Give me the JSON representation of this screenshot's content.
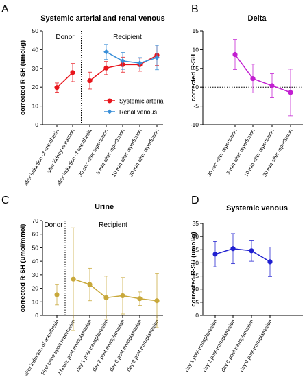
{
  "panels": [
    {
      "letter": "A",
      "chart_data": {
        "type": "line",
        "title": "Systemic arterial and renal venous",
        "ylabel": "corrected R-SH (umol/g)",
        "ylim": [
          0,
          50
        ],
        "yticks": [
          0,
          10,
          20,
          30,
          40,
          50
        ],
        "categories": [
          "after induction of anesthesia",
          "after kidney extraction",
          "after induction of anesthesia",
          "30 sec after reperfusion",
          "5 min after reperfusion",
          "10 min after reperfusion",
          "30 min after reperfusion"
        ],
        "group_labels": [
          {
            "text": "Donor",
            "from": 0,
            "to": 1
          },
          {
            "text": "Recipient",
            "from": 2,
            "to": 6
          }
        ],
        "separator_after_index": 1,
        "series": [
          {
            "name": "Systemic arterial",
            "color": "#e8141b",
            "marker": "circle",
            "values": [
              19.8,
              27.8,
              23.5,
              30.2,
              32.0,
              32.0,
              37.0
            ],
            "errors": [
              2.5,
              4.8,
              4.5,
              3.5,
              4.0,
              3.5,
              5.5
            ],
            "segments": [
              [
                0,
                1
              ],
              [
                2,
                6
              ]
            ]
          },
          {
            "name": "Renal venous",
            "color": "#3a8fd8",
            "marker": "diamond",
            "values": [
              null,
              null,
              null,
              38.8,
              34.0,
              32.8,
              35.8
            ],
            "errors": [
              null,
              null,
              null,
              4.0,
              4.5,
              3.0,
              6.5
            ],
            "segments": [
              [
                3,
                6
              ]
            ]
          }
        ],
        "legend_position": "lower-right"
      }
    },
    {
      "letter": "B",
      "chart_data": {
        "type": "line",
        "title": "Delta",
        "ylabel": "corrected R-SH",
        "ylim": [
          -10,
          15
        ],
        "yticks": [
          -10,
          -5,
          0,
          5,
          10,
          15
        ],
        "categories": [
          "30 sec after reperfusion",
          "5 min after reperfusion",
          "10 min after reperfusion",
          "30 min after reperfusion"
        ],
        "zero_line": true,
        "series": [
          {
            "name": "",
            "color": "#c21fd1",
            "marker": "circle",
            "values": [
              8.7,
              2.3,
              0.4,
              -1.4
            ],
            "errors": [
              4.0,
              3.8,
              3.2,
              6.2
            ],
            "segments": [
              [
                0,
                3
              ]
            ]
          }
        ]
      }
    },
    {
      "letter": "C",
      "chart_data": {
        "type": "line",
        "title": "Urine",
        "ylabel": "corrected R-SH (umol/mmol)",
        "ylim": [
          0,
          70
        ],
        "yticks": [
          0,
          10,
          20,
          30,
          40,
          50,
          60,
          70
        ],
        "categories": [
          "after induction of anesthesia",
          "First urine upon reperfusion",
          "2 hours post transplantation",
          "day 1 post transplantation",
          "day 2 post transplantation",
          "day 6 post transplantation",
          "day 9 post transplantation"
        ],
        "group_labels": [
          {
            "text": "Donor",
            "from": 0,
            "to": 0
          },
          {
            "text": "Recipient",
            "from": 1,
            "to": 6
          }
        ],
        "separator_after_index": 0,
        "series": [
          {
            "name": "",
            "color": "#c8a83a",
            "marker": "circle",
            "values": [
              15.2,
              26.8,
              22.8,
              13.0,
              14.5,
              12.3,
              10.8
            ],
            "errors": [
              7.5,
              38.0,
              12.0,
              16.0,
              13.5,
              5.0,
              20.0
            ],
            "segments": [
              [
                1,
                6
              ]
            ]
          }
        ]
      }
    },
    {
      "letter": "D",
      "chart_data": {
        "type": "line",
        "title": "Systemic venous",
        "ylabel": "corrected R-SH (umol/g)",
        "ylim": [
          0,
          35
        ],
        "yticks": [
          0,
          5,
          10,
          15,
          20,
          25,
          30,
          35
        ],
        "categories": [
          "day 1 post-transplantation",
          "day 2 post-transplantation",
          "day 6 post-transplantation",
          "day 9 post-transplantation"
        ],
        "series": [
          {
            "name": "",
            "color": "#2020d0",
            "marker": "circle",
            "values": [
              23.3,
              25.4,
              24.6,
              20.4
            ],
            "errors": [
              4.8,
              5.7,
              4.0,
              5.6
            ],
            "segments": [
              [
                0,
                3
              ]
            ]
          }
        ]
      }
    }
  ]
}
